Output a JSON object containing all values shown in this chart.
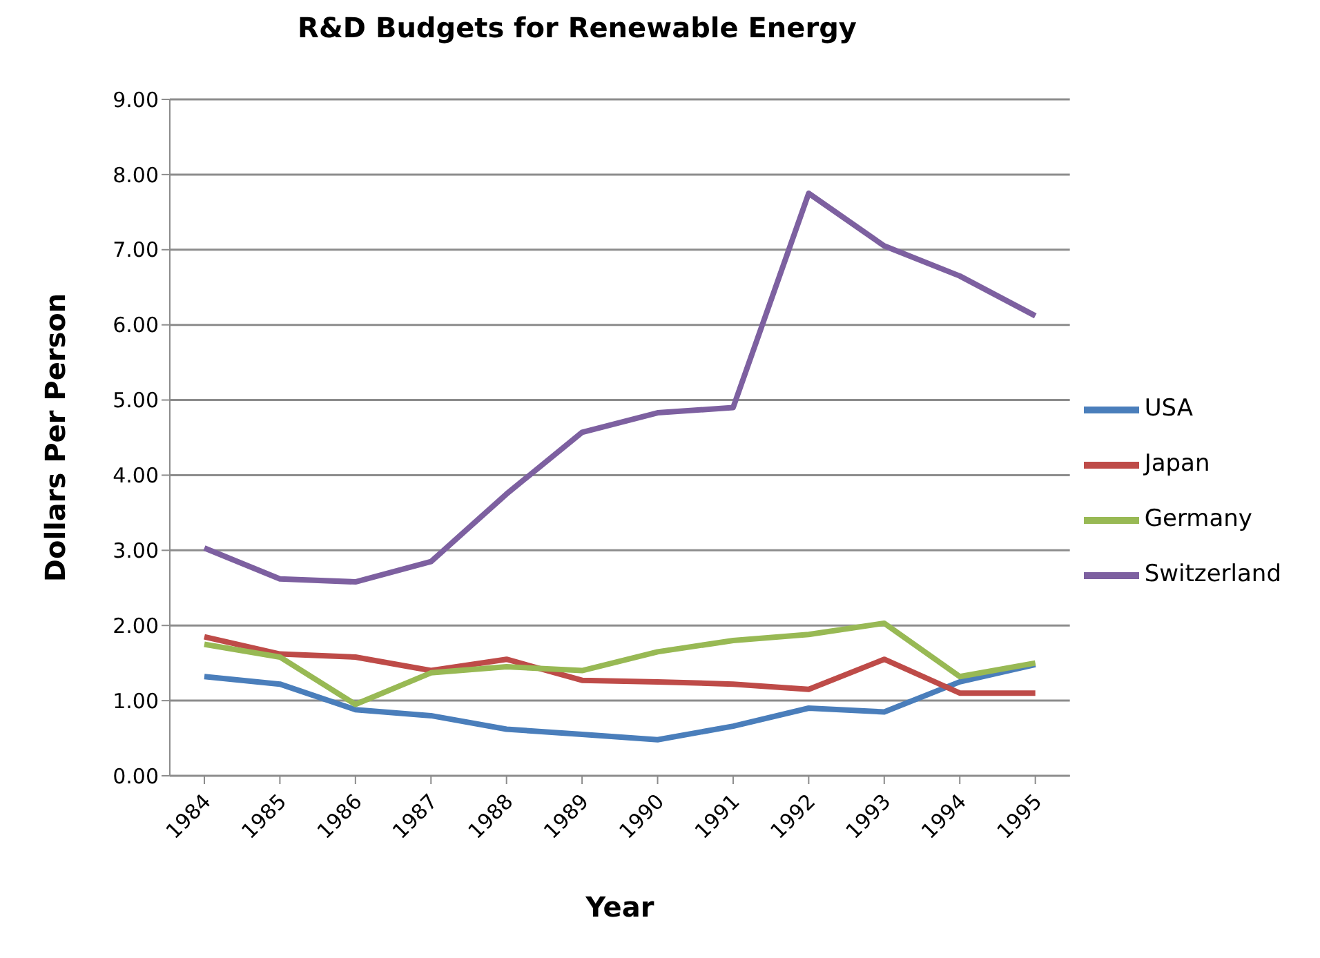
{
  "chart_data": {
    "type": "line",
    "title": "R&D Budgets for Renewable Energy",
    "xlabel": "Year",
    "ylabel": "Dollars Per Person",
    "categories": [
      "1984",
      "1985",
      "1986",
      "1987",
      "1988",
      "1989",
      "1990",
      "1991",
      "1992",
      "1993",
      "1994",
      "1995"
    ],
    "series": [
      {
        "name": "USA",
        "color": "#4a7ebb",
        "values": [
          1.32,
          1.22,
          0.88,
          0.8,
          0.62,
          0.55,
          0.48,
          0.66,
          0.9,
          0.85,
          1.25,
          1.48
        ]
      },
      {
        "name": "Japan",
        "color": "#be4b48",
        "values": [
          1.85,
          1.62,
          1.58,
          1.4,
          1.55,
          1.27,
          1.25,
          1.22,
          1.15,
          1.55,
          1.1,
          1.1
        ]
      },
      {
        "name": "Germany",
        "color": "#98b954",
        "values": [
          1.75,
          1.58,
          0.95,
          1.37,
          1.45,
          1.4,
          1.65,
          1.8,
          1.88,
          2.03,
          1.32,
          1.5
        ]
      },
      {
        "name": "Switzerland",
        "color": "#7d60a0",
        "values": [
          3.03,
          2.62,
          2.58,
          2.85,
          3.75,
          4.57,
          4.83,
          4.9,
          7.75,
          7.05,
          6.65,
          6.12
        ]
      }
    ],
    "ylim": [
      0,
      9
    ],
    "yticks": [
      {
        "value": 0,
        "label": "0.00"
      },
      {
        "value": 1,
        "label": "1.00"
      },
      {
        "value": 2,
        "label": "2.00"
      },
      {
        "value": 3,
        "label": "3.00"
      },
      {
        "value": 4,
        "label": "4.00"
      },
      {
        "value": 5,
        "label": "5.00"
      },
      {
        "value": 6,
        "label": "6.00"
      },
      {
        "value": 7,
        "label": "7.00"
      },
      {
        "value": 8,
        "label": "8.00"
      },
      {
        "value": 9,
        "label": "9.00"
      }
    ],
    "grid": "y",
    "legend": "right",
    "marker": "none",
    "line_style": "solid"
  }
}
